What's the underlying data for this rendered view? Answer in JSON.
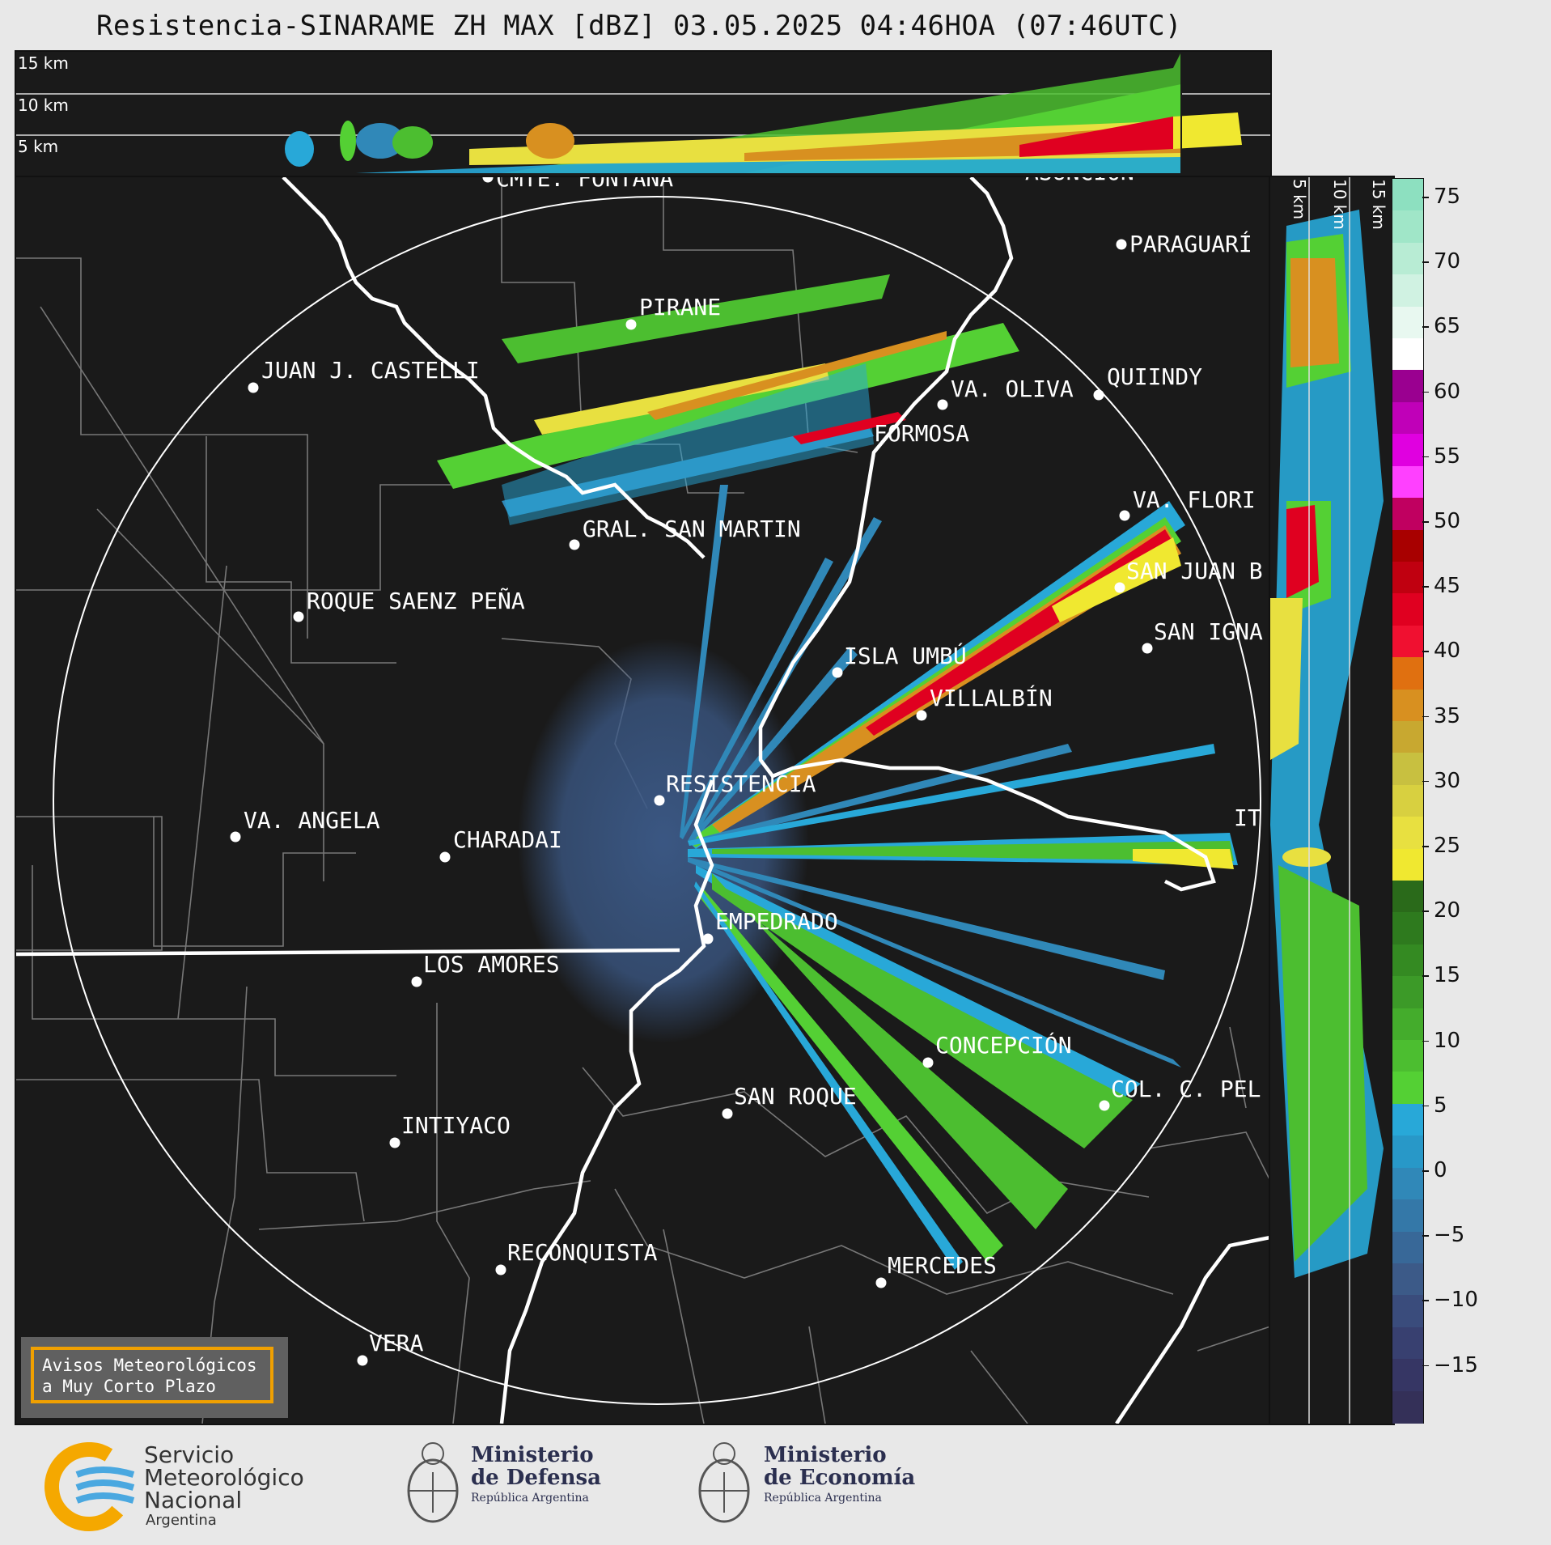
{
  "title": "Resistencia-SINARAME ZH MAX [dBZ] 03.05.2025 04:46HOA (07:46UTC)",
  "top_panel_altitudes": [
    "15 km",
    "10 km",
    "5 km"
  ],
  "side_panel_altitudes": [
    "5 km",
    "10 km",
    "15 km"
  ],
  "colorbar": {
    "ticks": [
      "75",
      "70",
      "65",
      "60",
      "55",
      "50",
      "45",
      "40",
      "35",
      "30",
      "25",
      "20",
      "15",
      "10",
      "5",
      "0",
      "−5",
      "−10",
      "−15"
    ],
    "segment_colors": [
      "#8de0c0",
      "#a0e6c8",
      "#b8ecd4",
      "#d0f2e2",
      "#e8f8f0",
      "#ffffff",
      "#9a0090",
      "#c000b8",
      "#e000e0",
      "#ff40ff",
      "#c00060",
      "#a80000",
      "#c00010",
      "#e00020",
      "#f01030",
      "#e07010",
      "#d89020",
      "#c8a830",
      "#c8c040",
      "#d8d040",
      "#e8e040",
      "#f0e830",
      "#2a6a1a",
      "#2e7a1e",
      "#348a22",
      "#3c9a28",
      "#44ac2c",
      "#4cbe30",
      "#54d034",
      "#28a8d8",
      "#2898c8",
      "#3088b8",
      "#3478a8",
      "#386898",
      "#3c5a88",
      "#3a4c7c",
      "#384070",
      "#363664",
      "#343058"
    ]
  },
  "cities": [
    {
      "name": "CMTE. FONTANA"
    },
    {
      "name": "ASUNCIÓN"
    },
    {
      "name": "PARAGUARÍ"
    },
    {
      "name": "PIRANE"
    },
    {
      "name": "JUAN J. CASTELLI"
    },
    {
      "name": "VA. OLIVA"
    },
    {
      "name": "QUIINDY"
    },
    {
      "name": "FORMOSA"
    },
    {
      "name": "VA. FLORI"
    },
    {
      "name": "GRAL. SAN MARTIN"
    },
    {
      "name": "SAN JUAN B"
    },
    {
      "name": "ROQUE SAENZ PEÑA"
    },
    {
      "name": "SAN IGNA"
    },
    {
      "name": "ISLA UMBÚ"
    },
    {
      "name": "VILLALBÍN"
    },
    {
      "name": "RESISTENCIA"
    },
    {
      "name": "VA. ANGELA"
    },
    {
      "name": "CHARADAI"
    },
    {
      "name": "IT"
    },
    {
      "name": "EMPEDRADO"
    },
    {
      "name": "LOS AMORES"
    },
    {
      "name": "CONCEPCIÓN"
    },
    {
      "name": "COL. C. PEL"
    },
    {
      "name": "SAN ROQUE"
    },
    {
      "name": "INTIYACO"
    },
    {
      "name": "RECONQUISTA"
    },
    {
      "name": "MERCEDES"
    },
    {
      "name": "VERA"
    }
  ],
  "alert_box": {
    "line1": "Avisos Meteorológicos",
    "line2": "a Muy Corto Plazo"
  },
  "footer": {
    "smn": {
      "line1": "Servicio",
      "line2": "Meteorológico",
      "line3": "Nacional",
      "line4": "Argentina"
    },
    "defensa": {
      "line1": "Ministerio",
      "line2": "de Defensa",
      "line3": "República Argentina"
    },
    "economia": {
      "line1": "Ministerio",
      "line2": "de Economía",
      "line3": "República Argentina"
    }
  }
}
